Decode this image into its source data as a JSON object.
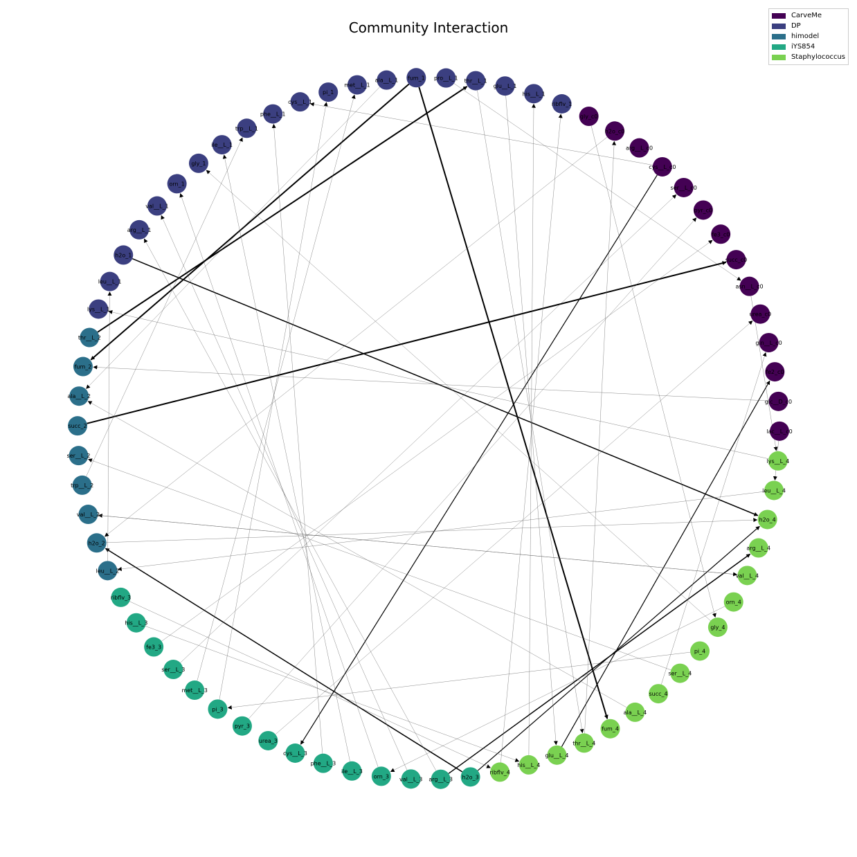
{
  "title": "Community Interaction",
  "legend": [
    {
      "label": "CarveMe",
      "color": "#440154"
    },
    {
      "label": "DP",
      "color": "#3b3f80"
    },
    {
      "label": "himodel",
      "color": "#2b6f8a"
    },
    {
      "label": "iYS854",
      "color": "#22a884"
    },
    {
      "label": "Staphylococcus",
      "color": "#7ad151"
    }
  ],
  "nodes": [
    {
      "id": "fum_1",
      "label": "fum_1",
      "group": 1
    },
    {
      "id": "pro__L_1",
      "label": "pro__L_1",
      "group": 1
    },
    {
      "id": "thr__L_1",
      "label": "thr__L_1",
      "group": 1
    },
    {
      "id": "glu__L_1",
      "label": "glu__L_1",
      "group": 1
    },
    {
      "id": "his__L_1",
      "label": "his__L_1",
      "group": 1
    },
    {
      "id": "ribflv_1",
      "label": "ribflv_1",
      "group": 1
    },
    {
      "id": "c0_1",
      "label": "gly_c0",
      "group": 0
    },
    {
      "id": "c0_2",
      "label": "h2o_c0",
      "group": 0
    },
    {
      "id": "c0_3",
      "label": "arg__L_c0",
      "group": 0
    },
    {
      "id": "c0_4",
      "label": "cys__L_c0",
      "group": 0
    },
    {
      "id": "c0_5",
      "label": "ser__L_c0",
      "group": 0
    },
    {
      "id": "c0_6",
      "label": "pyr_c0",
      "group": 0
    },
    {
      "id": "c0_7",
      "label": "fe3_c0",
      "group": 0
    },
    {
      "id": "c0_8",
      "label": "succ_c0",
      "group": 0
    },
    {
      "id": "c0_9",
      "label": "asn__L_c0",
      "group": 0
    },
    {
      "id": "c0_10",
      "label": "urea_c0",
      "group": 0
    },
    {
      "id": "c0_11",
      "label": "gln__L_c0",
      "group": 0
    },
    {
      "id": "c0_12",
      "label": "fe2_c0",
      "group": 0
    },
    {
      "id": "c0_13",
      "label": "glc__D_c0",
      "group": 0
    },
    {
      "id": "c0_14",
      "label": "lac__L_c0",
      "group": 0
    },
    {
      "id": "lys__L_4",
      "label": "lys__L_4",
      "group": 4
    },
    {
      "id": "leu__L_4",
      "label": "leu__L_4",
      "group": 4
    },
    {
      "id": "h2o_4",
      "label": "h2o_4",
      "group": 4
    },
    {
      "id": "arg__L_4",
      "label": "arg__L_4",
      "group": 4
    },
    {
      "id": "val__L_4",
      "label": "val__L_4",
      "group": 4
    },
    {
      "id": "orn_4",
      "label": "orn_4",
      "group": 4
    },
    {
      "id": "gly_4",
      "label": "gly_4",
      "group": 4
    },
    {
      "id": "pi_4",
      "label": "pi_4",
      "group": 4
    },
    {
      "id": "ser__L_4",
      "label": "ser__L_4",
      "group": 4
    },
    {
      "id": "succ_4",
      "label": "succ_4",
      "group": 4
    },
    {
      "id": "ala__L_4",
      "label": "ala__L_4",
      "group": 4
    },
    {
      "id": "fum_4",
      "label": "fum_4",
      "group": 4
    },
    {
      "id": "thr__L_4",
      "label": "thr__L_4",
      "group": 4
    },
    {
      "id": "glu__L_4",
      "label": "glu__L_4",
      "group": 4
    },
    {
      "id": "his__L_4",
      "label": "his__L_4",
      "group": 4
    },
    {
      "id": "ribflv_4",
      "label": "ribflv_4",
      "group": 4
    },
    {
      "id": "h2o_3",
      "label": "h2o_3",
      "group": 3
    },
    {
      "id": "arg__L_3",
      "label": "arg__L_3",
      "group": 3
    },
    {
      "id": "val__L_3",
      "label": "val__L_3",
      "group": 3
    },
    {
      "id": "orn_3",
      "label": "orn_3",
      "group": 3
    },
    {
      "id": "ile__L_3",
      "label": "ile__L_3",
      "group": 3
    },
    {
      "id": "phe__L_3",
      "label": "phe__L_3",
      "group": 3
    },
    {
      "id": "cys__L_3",
      "label": "cys__L_3",
      "group": 3
    },
    {
      "id": "urea_3",
      "label": "urea_3",
      "group": 3
    },
    {
      "id": "pyr_3",
      "label": "pyr_3",
      "group": 3
    },
    {
      "id": "pi_3",
      "label": "pi_3",
      "group": 3
    },
    {
      "id": "met__L_3",
      "label": "met__L_3",
      "group": 3
    },
    {
      "id": "ser__L_3",
      "label": "ser__L_3",
      "group": 3
    },
    {
      "id": "fe3_3",
      "label": "fe3_3",
      "group": 3
    },
    {
      "id": "his__L_3",
      "label": "his__L_3",
      "group": 3
    },
    {
      "id": "ribflv_3",
      "label": "ribflv_3",
      "group": 3
    },
    {
      "id": "leu__L_2",
      "label": "leu__L_2",
      "group": 2
    },
    {
      "id": "h2o_2",
      "label": "h2o_2",
      "group": 2
    },
    {
      "id": "val__L_2",
      "label": "val__L_2",
      "group": 2
    },
    {
      "id": "trp__L_2",
      "label": "trp__L_2",
      "group": 2
    },
    {
      "id": "ser__L_2",
      "label": "ser__L_2",
      "group": 2
    },
    {
      "id": "succ_2",
      "label": "succ_2",
      "group": 2
    },
    {
      "id": "ala__L_2",
      "label": "ala__L_2",
      "group": 2
    },
    {
      "id": "fum_2",
      "label": "fum_2",
      "group": 2
    },
    {
      "id": "thr__L_2",
      "label": "thr__L_2",
      "group": 2
    },
    {
      "id": "lys__L_1",
      "label": "lys__L_1",
      "group": 1
    },
    {
      "id": "leu__L_1",
      "label": "leu__L_1",
      "group": 1
    },
    {
      "id": "h2o_1",
      "label": "h2o_1",
      "group": 1
    },
    {
      "id": "arg__L_1",
      "label": "arg__L_1",
      "group": 1
    },
    {
      "id": "val__L_1",
      "label": "val__L_1",
      "group": 1
    },
    {
      "id": "orn_1",
      "label": "orn_1",
      "group": 1
    },
    {
      "id": "gly_1",
      "label": "gly_1",
      "group": 1
    },
    {
      "id": "ile__L_1",
      "label": "ile__L_1",
      "group": 1
    },
    {
      "id": "trp__L_1",
      "label": "trp__L_1",
      "group": 1
    },
    {
      "id": "phe__L_1",
      "label": "phe__L_1",
      "group": 1
    },
    {
      "id": "cys__L_1",
      "label": "cys__L_1",
      "group": 1
    },
    {
      "id": "pi_1",
      "label": "pi_1",
      "group": 1
    },
    {
      "id": "met__L_1",
      "label": "met__L_1",
      "group": 1
    },
    {
      "id": "ala__L_1",
      "label": "ala__L_1",
      "group": 1
    }
  ],
  "edges": [
    [
      "fum_1",
      "fum_2",
      2
    ],
    [
      "thr__L_2",
      "thr__L_1",
      2
    ],
    [
      "fum_1",
      "fum_4",
      2
    ],
    [
      "h2o_1",
      "h2o_4",
      1.5
    ],
    [
      "succ_2",
      "c0_8",
      2
    ],
    [
      "h2o_3",
      "h2o_2",
      1.5
    ],
    [
      "arg__L_3",
      "arg__L_4",
      1.5
    ],
    [
      "h2o_3",
      "h2o_4",
      1.2
    ],
    [
      "glu__L_4",
      "c0_12",
      1.2
    ],
    [
      "c0_4",
      "cys__L_3",
      1.2
    ],
    [
      "c0_4",
      "cys__L_1",
      0.8
    ],
    [
      "thr__L_4",
      "c0_2",
      0.4
    ],
    [
      "his__L_4",
      "his__L_1",
      0.4
    ],
    [
      "ribflv_4",
      "ribflv_1",
      0.4
    ],
    [
      "ala__L_4",
      "ala__L_2",
      0.4
    ],
    [
      "ser__L_4",
      "ser__L_2",
      0.4
    ],
    [
      "pi_4",
      "pi_3",
      0.4
    ],
    [
      "gly_4",
      "gly_1",
      0.4
    ],
    [
      "orn_4",
      "orn_3",
      0.4
    ],
    [
      "val__L_4",
      "val__L_2",
      0.4
    ],
    [
      "leu__L_4",
      "leu__L_2",
      0.4
    ],
    [
      "lys__L_4",
      "lys__L_1",
      0.4
    ],
    [
      "succ_4",
      "c0_11",
      0.4
    ],
    [
      "ser__L_3",
      "c0_5",
      0.4
    ],
    [
      "fe3_3",
      "c0_7",
      0.4
    ],
    [
      "pyr_3",
      "c0_6",
      0.4
    ],
    [
      "urea_3",
      "c0_10",
      0.4
    ],
    [
      "val__L_3",
      "val__L_1",
      0.4
    ],
    [
      "ile__L_3",
      "ile__L_1",
      0.4
    ],
    [
      "phe__L_3",
      "phe__L_1",
      0.4
    ],
    [
      "met__L_3",
      "met__L_1",
      0.4
    ],
    [
      "pi_3",
      "pi_1",
      0.4
    ],
    [
      "his__L_3",
      "his__L_4",
      0.4
    ],
    [
      "ribflv_3",
      "ribflv_4",
      0.4
    ],
    [
      "orn_3",
      "orn_1",
      0.4
    ],
    [
      "arg__L_3",
      "arg__L_1",
      0.4
    ],
    [
      "val__L_2",
      "val__L_4",
      0.4
    ],
    [
      "trp__L_2",
      "trp__L_1",
      0.4
    ],
    [
      "leu__L_2",
      "leu__L_1",
      0.4
    ],
    [
      "ala__L_1",
      "ala__L_2",
      0.4
    ],
    [
      "glu__L_1",
      "glu__L_4",
      0.4
    ],
    [
      "pro__L_1",
      "c0_9",
      0.4
    ],
    [
      "thr__L_1",
      "thr__L_4",
      0.4
    ],
    [
      "c0_3",
      "arg__L_2",
      0.4
    ],
    [
      "c0_13",
      "fum_2",
      0.4
    ],
    [
      "c0_2",
      "h2o_2",
      0.4
    ],
    [
      "c0_1",
      "gly_4",
      0.4
    ],
    [
      "c0_14",
      "leu__L_4",
      0.4
    ],
    [
      "h2o_2",
      "h2o_4",
      0.4
    ],
    [
      "ser__L_1",
      "ser__L_2",
      0.4
    ],
    [
      "c0_9",
      "lys__L_4",
      0.4
    ]
  ]
}
